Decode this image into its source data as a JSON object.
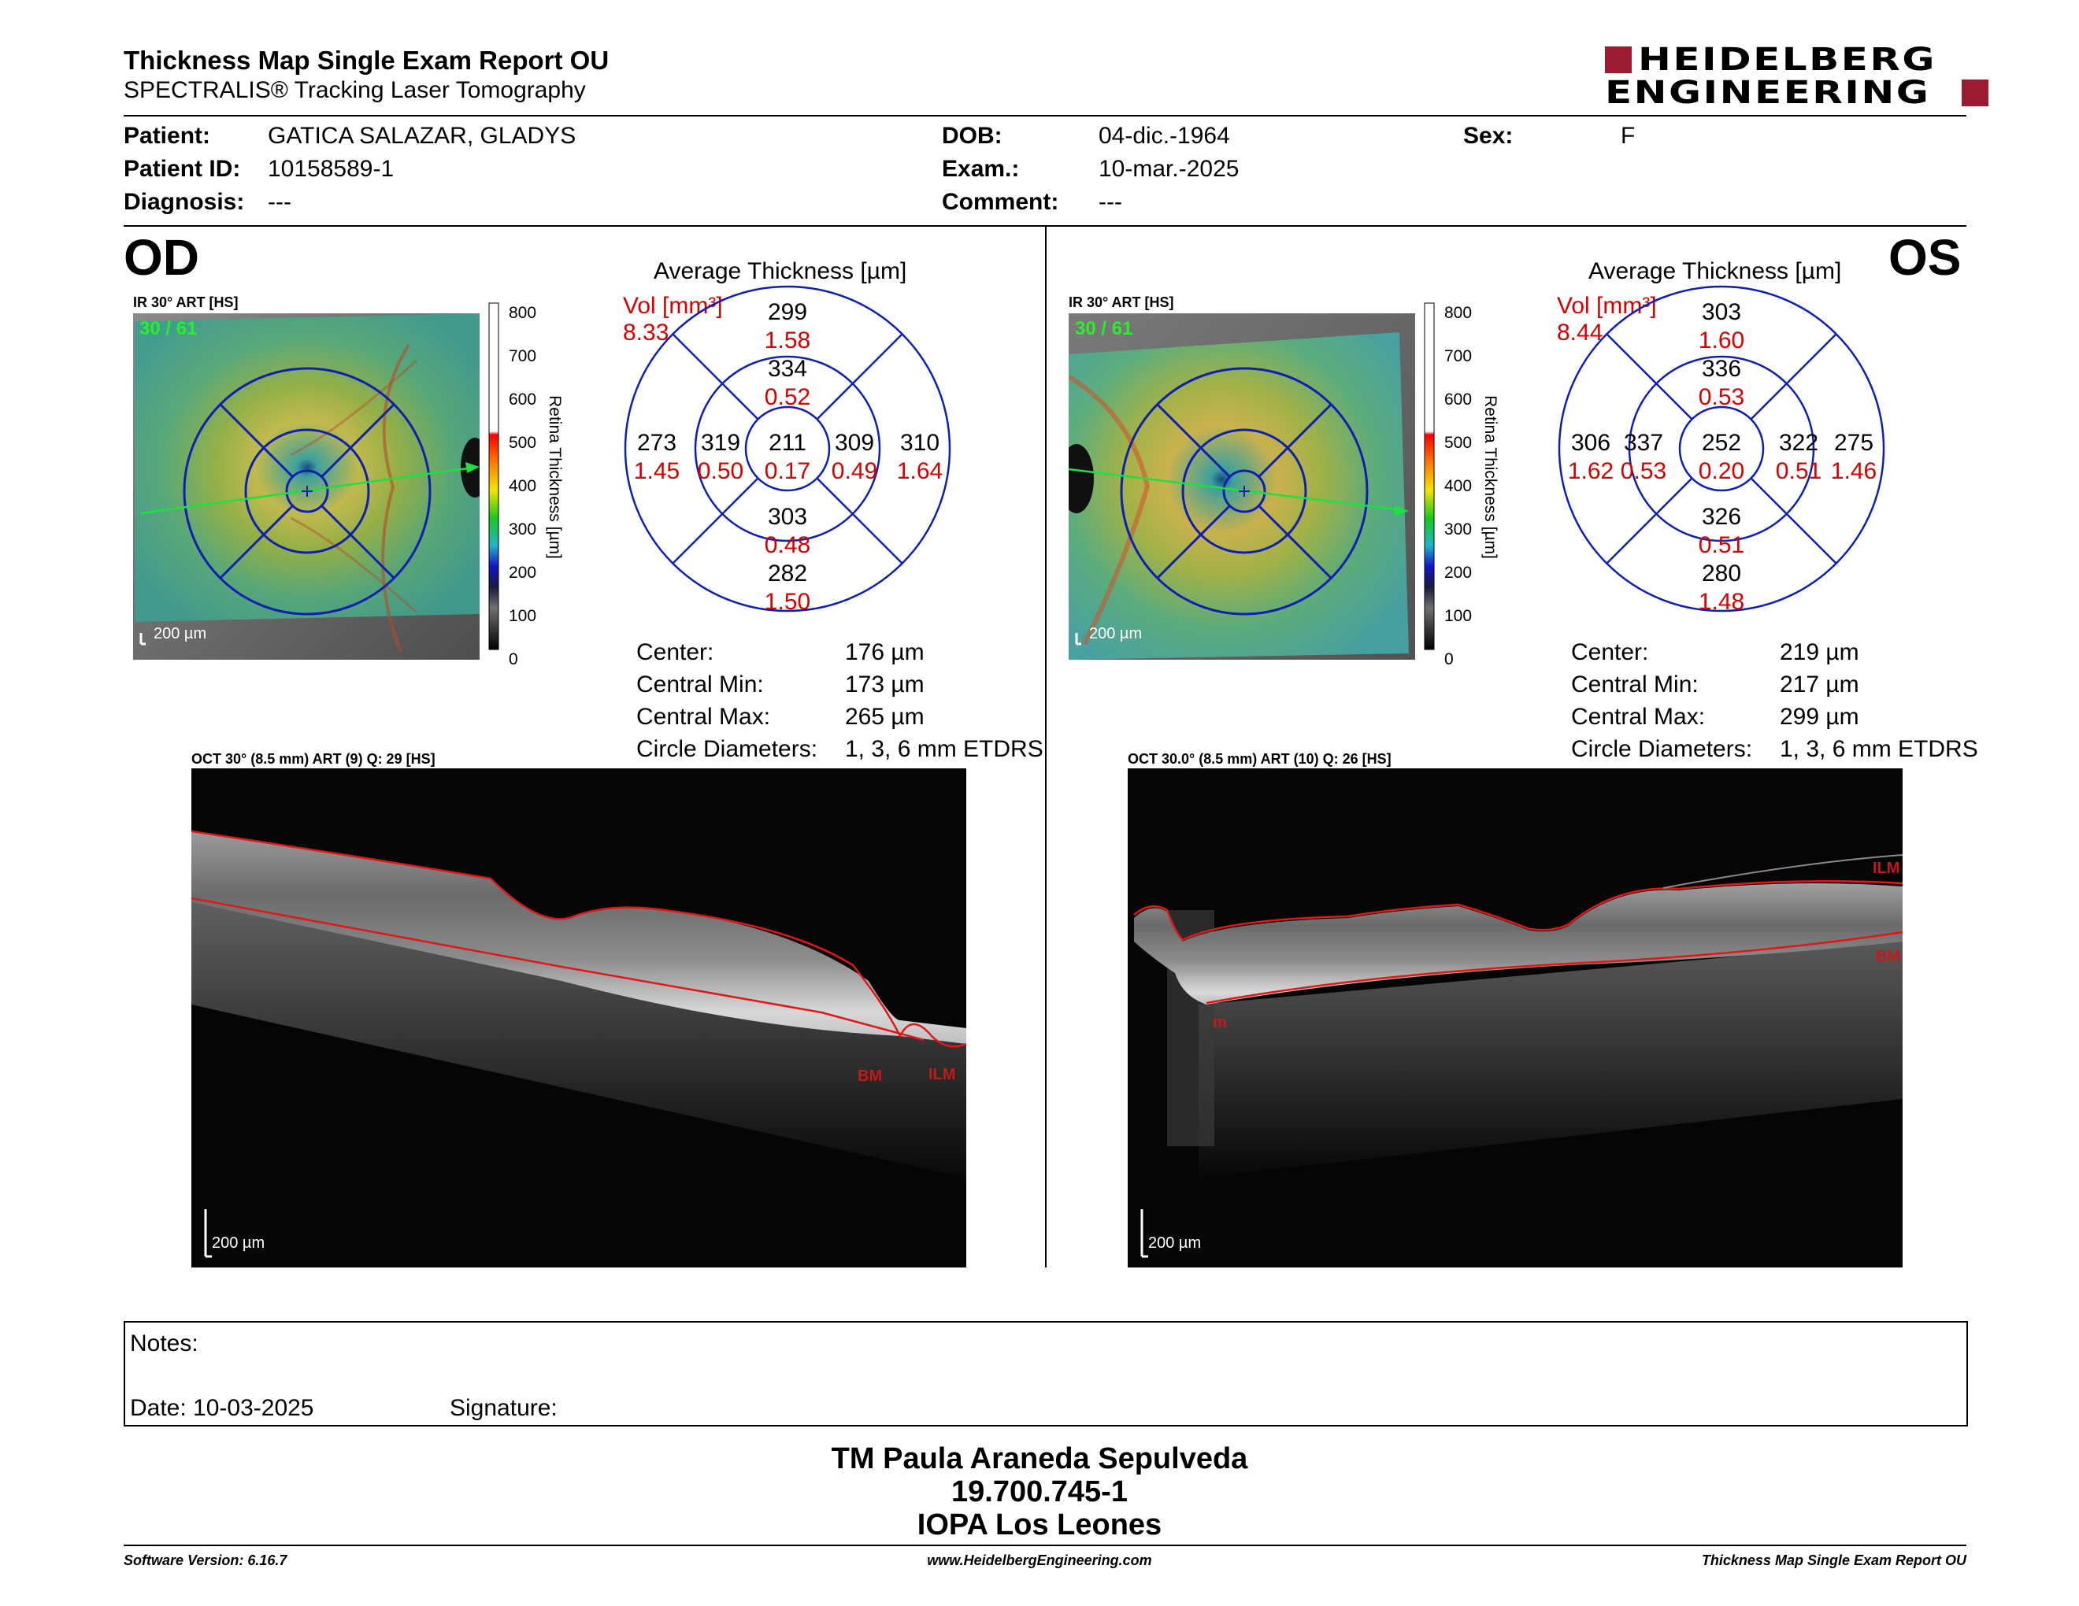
{
  "header": {
    "title": "Thickness Map Single Exam Report OU",
    "subtitle": "SPECTRALIS® Tracking Laser Tomography",
    "logo_line1": "HEIDELBERG",
    "logo_line2": "ENGINEERING",
    "brand_color": "#9b1b30"
  },
  "patient": {
    "patient_label": "Patient:",
    "patient_value": "GATICA SALAZAR, GLADYS",
    "id_label": "Patient ID:",
    "id_value": "10158589-1",
    "diagnosis_label": "Diagnosis:",
    "diagnosis_value": "---",
    "dob_label": "DOB:",
    "dob_value": "04-dic.-1964",
    "exam_label": "Exam.:",
    "exam_value": "10-mar.-2025",
    "comment_label": "Comment:",
    "comment_value": "---",
    "sex_label": "Sex:",
    "sex_value": "F"
  },
  "od": {
    "eye": "OD",
    "ir_label": "IR 30° ART [HS]",
    "frames": "30 / 61",
    "scale_bar": "200 µm",
    "avg_title": "Average Thickness [µm]",
    "vol_label": "Vol [mm³]",
    "vol_total": "8.33",
    "grid": {
      "center": {
        "t": "211",
        "v": "0.17"
      },
      "inner_sup": {
        "t": "334",
        "v": "0.52"
      },
      "inner_inf": {
        "t": "303",
        "v": "0.48"
      },
      "inner_left": {
        "t": "319",
        "v": "0.50"
      },
      "inner_right": {
        "t": "309",
        "v": "0.49"
      },
      "outer_sup": {
        "t": "299",
        "v": "1.58"
      },
      "outer_inf": {
        "t": "282",
        "v": "1.50"
      },
      "outer_left": {
        "t": "273",
        "v": "1.45"
      },
      "outer_right": {
        "t": "310",
        "v": "1.64"
      }
    },
    "stats": {
      "center_label": "Center:",
      "center_value": "176 µm",
      "min_label": "Central Min:",
      "min_value": "173 µm",
      "max_label": "Central Max:",
      "max_value": "265 µm",
      "diam_label": "Circle Diameters:",
      "diam_value": "1, 3, 6 mm ETDRS"
    },
    "oct_label": "OCT 30° (8.5 mm) ART (9) Q: 29 [HS]",
    "oct_scale": "200 µm",
    "layer_labels": [
      "BM",
      "ILM"
    ]
  },
  "os": {
    "eye": "OS",
    "ir_label": "IR 30° ART [HS]",
    "frames": "30 / 61",
    "scale_bar": "200 µm",
    "avg_title": "Average Thickness [µm]",
    "vol_label": "Vol [mm³]",
    "vol_total": "8.44",
    "grid": {
      "center": {
        "t": "252",
        "v": "0.20"
      },
      "inner_sup": {
        "t": "336",
        "v": "0.53"
      },
      "inner_inf": {
        "t": "326",
        "v": "0.51"
      },
      "inner_left": {
        "t": "337",
        "v": "0.53"
      },
      "inner_right": {
        "t": "322",
        "v": "0.51"
      },
      "outer_sup": {
        "t": "303",
        "v": "1.60"
      },
      "outer_inf": {
        "t": "280",
        "v": "1.48"
      },
      "outer_left": {
        "t": "306",
        "v": "1.62"
      },
      "outer_right": {
        "t": "275",
        "v": "1.46"
      }
    },
    "stats": {
      "center_label": "Center:",
      "center_value": "219 µm",
      "min_label": "Central Min:",
      "min_value": "217 µm",
      "max_label": "Central Max:",
      "max_value": "299 µm",
      "diam_label": "Circle Diameters:",
      "diam_value": "1, 3, 6 mm ETDRS"
    },
    "oct_label": "OCT 30.0° (8.5 mm) ART (10) Q: 26 [HS]",
    "oct_scale": "200 µm",
    "layer_labels": [
      "ILM",
      "BM",
      "m"
    ]
  },
  "scale": {
    "ticks": [
      "800",
      "700",
      "600",
      "500",
      "400",
      "300",
      "200",
      "100",
      "0"
    ],
    "axis_label": "Retina Thickness [µm]"
  },
  "notes": {
    "notes_label": "Notes:",
    "date_label": "Date: 10-03-2025",
    "signature_label": "Signature:"
  },
  "signature": {
    "name": "TM Paula Araneda Sepulveda",
    "rut": "19.700.745-1",
    "institution": "IOPA Los Leones"
  },
  "footer": {
    "software": "Software Version: 6.16.7",
    "website": "www.HeidelbergEngineering.com",
    "report": "Thickness Map Single Exam Report OU"
  }
}
